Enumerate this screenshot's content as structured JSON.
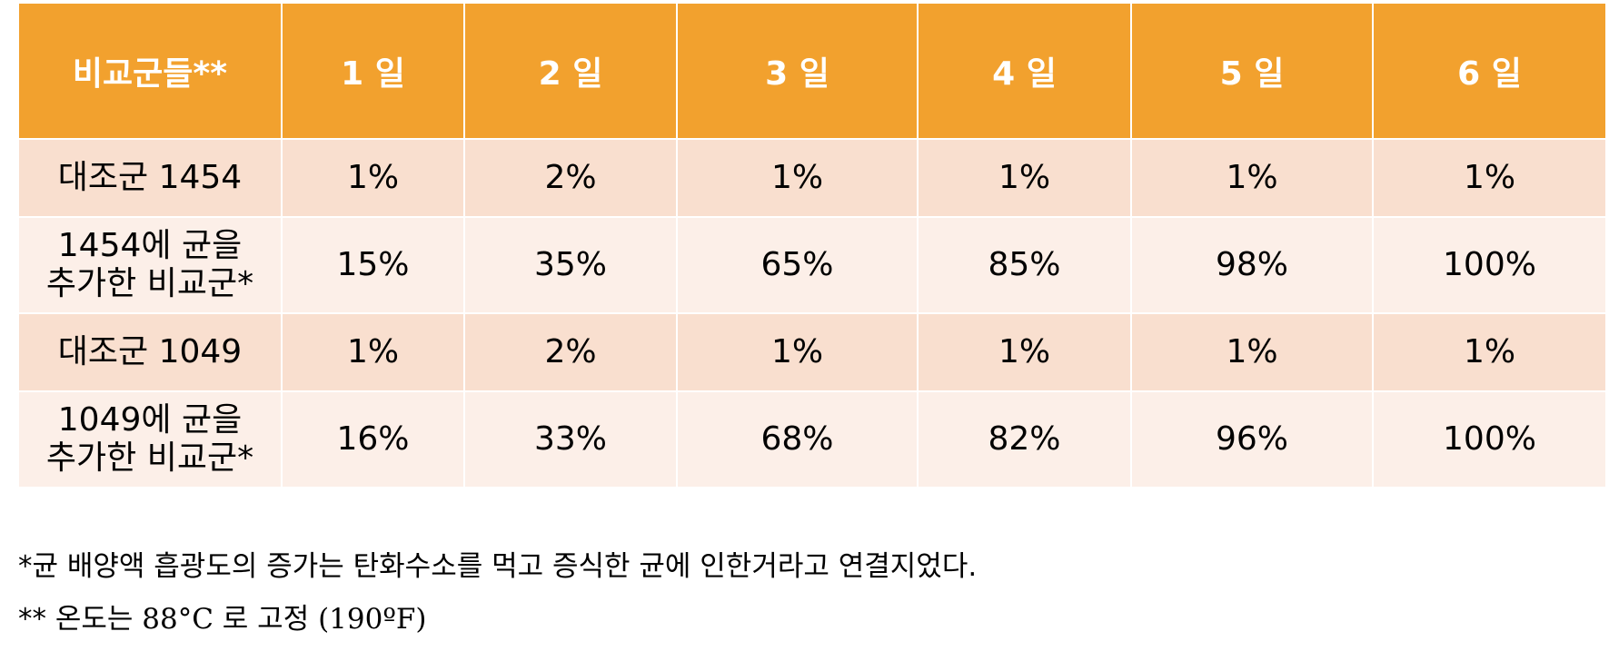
{
  "table": {
    "headers": [
      "비교군들**",
      "1 일",
      "2 일",
      "3 일",
      "4 일",
      "5 일",
      "6 일"
    ],
    "rows": [
      {
        "label": [
          "대조군 1454"
        ],
        "values": [
          "1%",
          "2%",
          "1%",
          "1%",
          "1%",
          "1%"
        ]
      },
      {
        "label": [
          "1454에 균을",
          "추가한 비교군*"
        ],
        "values": [
          "15%",
          "35%",
          "65%",
          "85%",
          "98%",
          "100%"
        ]
      },
      {
        "label": [
          "대조군 1049"
        ],
        "values": [
          "1%",
          "2%",
          "1%",
          "1%",
          "1%",
          "1%"
        ]
      },
      {
        "label": [
          "1049에 균을",
          "추가한 비교군*"
        ],
        "values": [
          "16%",
          "33%",
          "68%",
          "82%",
          "96%",
          "100%"
        ]
      }
    ]
  },
  "colors": {
    "header_bg": "#F2A12E",
    "row_dark": "#F9DFCF",
    "row_light": "#FCEFE8"
  },
  "footnotes": {
    "note1": "*균 배양액 흡광도의 증가는 탄화수소를 먹고 증식한 균에 인한거라고 연결지었다.",
    "note2_prefix": "** 온도는 ",
    "note2_temp_c": "88°C",
    "note2_mid": " 로 고정 ",
    "note2_temp_f": "(190ºF)"
  }
}
